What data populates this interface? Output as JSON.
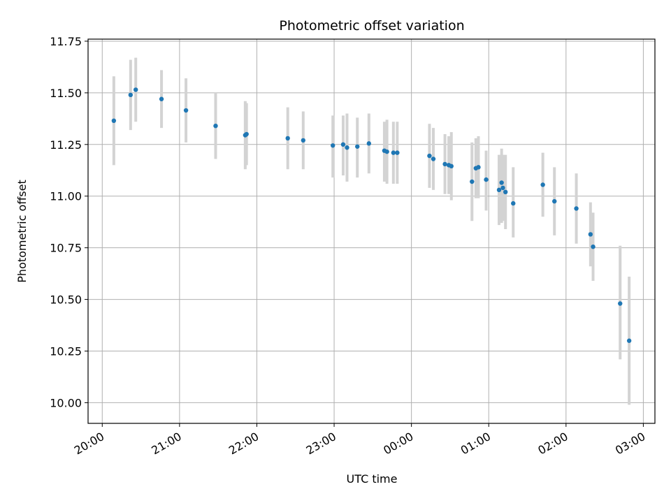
{
  "chart_data": {
    "type": "scatter",
    "title": "Photometric offset variation",
    "xlabel": "UTC time",
    "ylabel": "Photometric offset",
    "x_ticks": [
      "20:00",
      "21:00",
      "22:00",
      "23:00",
      "00:00",
      "01:00",
      "02:00",
      "03:00"
    ],
    "y_ticks": [
      "10.00",
      "10.25",
      "10.50",
      "10.75",
      "11.00",
      "11.25",
      "11.50",
      "11.75"
    ],
    "ylim": [
      9.9,
      11.76
    ],
    "xlim": [
      "19:49",
      "03:09"
    ],
    "grid": true,
    "colors": {
      "points": "#1f77b4",
      "errorbars": "#d3d3d3",
      "grid": "#b0b0b0"
    },
    "points": [
      {
        "t": "20:09",
        "y": 11.365,
        "lo": 11.15,
        "hi": 11.58
      },
      {
        "t": "20:22",
        "y": 11.49,
        "lo": 11.32,
        "hi": 11.66
      },
      {
        "t": "20:26",
        "y": 11.515,
        "lo": 11.36,
        "hi": 11.67
      },
      {
        "t": "20:46",
        "y": 11.47,
        "lo": 11.33,
        "hi": 11.61
      },
      {
        "t": "21:05",
        "y": 11.415,
        "lo": 11.26,
        "hi": 11.57
      },
      {
        "t": "21:28",
        "y": 11.34,
        "lo": 11.18,
        "hi": 11.5
      },
      {
        "t": "21:51",
        "y": 11.295,
        "lo": 11.13,
        "hi": 11.46
      },
      {
        "t": "21:52",
        "y": 11.3,
        "lo": 11.15,
        "hi": 11.45
      },
      {
        "t": "22:24",
        "y": 11.28,
        "lo": 11.13,
        "hi": 11.43
      },
      {
        "t": "22:36",
        "y": 11.27,
        "lo": 11.13,
        "hi": 11.41
      },
      {
        "t": "22:59",
        "y": 11.245,
        "lo": 11.09,
        "hi": 11.39
      },
      {
        "t": "23:07",
        "y": 11.25,
        "lo": 11.1,
        "hi": 11.39
      },
      {
        "t": "23:10",
        "y": 11.235,
        "lo": 11.07,
        "hi": 11.4
      },
      {
        "t": "23:18",
        "y": 11.24,
        "lo": 11.09,
        "hi": 11.38
      },
      {
        "t": "23:27",
        "y": 11.255,
        "lo": 11.11,
        "hi": 11.4
      },
      {
        "t": "23:39",
        "y": 11.22,
        "lo": 11.07,
        "hi": 11.36
      },
      {
        "t": "23:41",
        "y": 11.215,
        "lo": 11.06,
        "hi": 11.37
      },
      {
        "t": "23:46",
        "y": 11.21,
        "lo": 11.06,
        "hi": 11.36
      },
      {
        "t": "23:49",
        "y": 11.21,
        "lo": 11.06,
        "hi": 11.36
      },
      {
        "t": "00:14",
        "y": 11.195,
        "lo": 11.04,
        "hi": 11.35
      },
      {
        "t": "00:17",
        "y": 11.18,
        "lo": 11.03,
        "hi": 11.33
      },
      {
        "t": "00:26",
        "y": 11.155,
        "lo": 11.01,
        "hi": 11.3
      },
      {
        "t": "00:29",
        "y": 11.15,
        "lo": 11.01,
        "hi": 11.29
      },
      {
        "t": "00:31",
        "y": 11.145,
        "lo": 10.98,
        "hi": 11.31
      },
      {
        "t": "00:47",
        "y": 11.07,
        "lo": 10.88,
        "hi": 11.26
      },
      {
        "t": "00:50",
        "y": 11.135,
        "lo": 10.99,
        "hi": 11.28
      },
      {
        "t": "00:52",
        "y": 11.14,
        "lo": 10.99,
        "hi": 11.29
      },
      {
        "t": "00:58",
        "y": 11.08,
        "lo": 10.93,
        "hi": 11.22
      },
      {
        "t": "01:08",
        "y": 11.03,
        "lo": 10.86,
        "hi": 11.2
      },
      {
        "t": "01:10",
        "y": 11.065,
        "lo": 10.87,
        "hi": 11.23
      },
      {
        "t": "01:11",
        "y": 11.04,
        "lo": 10.88,
        "hi": 11.2
      },
      {
        "t": "01:13",
        "y": 11.02,
        "lo": 10.84,
        "hi": 11.2
      },
      {
        "t": "01:19",
        "y": 10.965,
        "lo": 10.8,
        "hi": 11.14
      },
      {
        "t": "01:42",
        "y": 11.055,
        "lo": 10.9,
        "hi": 11.21
      },
      {
        "t": "01:51",
        "y": 10.975,
        "lo": 10.81,
        "hi": 11.14
      },
      {
        "t": "02:08",
        "y": 10.94,
        "lo": 10.77,
        "hi": 11.11
      },
      {
        "t": "02:19",
        "y": 10.815,
        "lo": 10.66,
        "hi": 10.97
      },
      {
        "t": "02:21",
        "y": 10.755,
        "lo": 10.59,
        "hi": 10.92
      },
      {
        "t": "02:42",
        "y": 10.48,
        "lo": 10.21,
        "hi": 10.76
      },
      {
        "t": "02:49",
        "y": 10.3,
        "lo": 9.99,
        "hi": 10.61
      }
    ]
  }
}
